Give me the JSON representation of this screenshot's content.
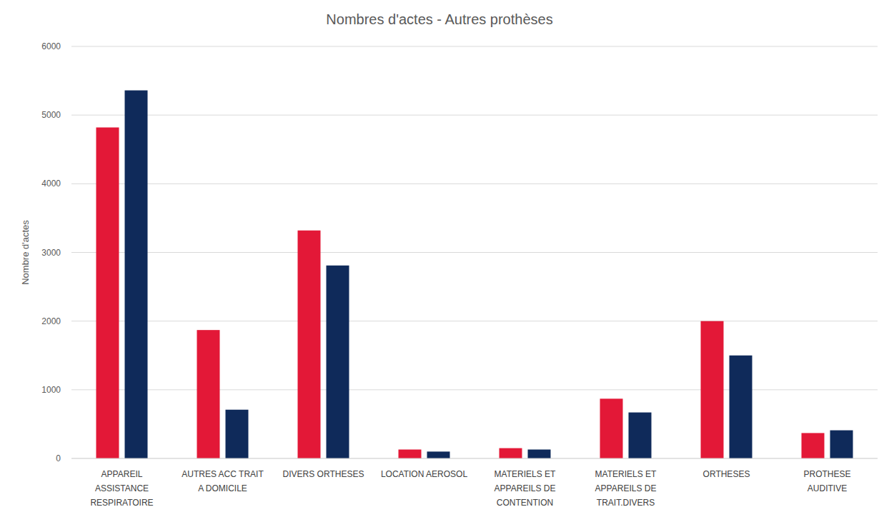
{
  "chart_data": {
    "type": "bar",
    "title": "Nombres d'actes - Autres prothèses",
    "y_label": "Nombre d'actes",
    "categories": [
      "APPAREIL ASSISTANCE RESPIRATOIRE",
      "AUTRES ACC TRAIT A DOMICILE",
      "DIVERS ORTHESES",
      "LOCATION AEROSOL",
      "MATERIELS ET APPAREILS DE CONTENTION",
      "MATERIELS ET APPAREILS DE TRAIT.DIVERS",
      "ORTHESES",
      "PROTHESE AUDITIVE"
    ],
    "series": [
      {
        "color": "#e31837",
        "values": [
          4820,
          1870,
          3320,
          130,
          150,
          870,
          2000,
          370
        ]
      },
      {
        "color": "#0f2a5a",
        "values": [
          5360,
          710,
          2810,
          100,
          130,
          670,
          1500,
          410
        ]
      }
    ],
    "ylim": [
      0,
      6000
    ],
    "yticks": [
      0,
      1000,
      2000,
      3000,
      4000,
      5000,
      6000
    ],
    "grid": true
  }
}
